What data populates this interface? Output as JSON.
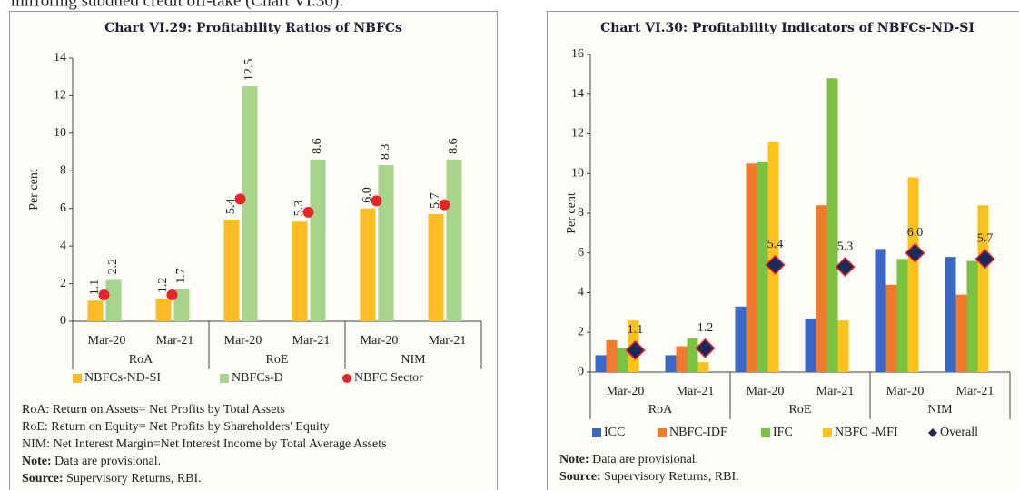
{
  "page_text": "mirroring subdued credit off-take (Chart VI.30).",
  "chart_data": [
    {
      "type": "bar",
      "title": "Chart VI.29: Profitability Ratios of NBFCs",
      "y_label": "Per cent",
      "categories": [
        "Mar-20",
        "Mar-21",
        "Mar-20",
        "Mar-21",
        "Mar-20",
        "Mar-21"
      ],
      "groups": [
        "RoA",
        "RoE",
        "NIM"
      ],
      "ylim": [
        0,
        14
      ],
      "yticks": [
        0,
        2,
        4,
        6,
        8,
        10,
        12,
        14
      ],
      "series": [
        {
          "name": "NBFCs-ND-SI",
          "color": "#fbbd22",
          "values": [
            1.1,
            1.2,
            5.4,
            5.3,
            6.0,
            5.7
          ],
          "value_labels": [
            "1.1",
            "1.2",
            "5.4",
            "5.3",
            "6.0",
            "5.7"
          ]
        },
        {
          "name": "NBFCs-D",
          "color": "#a6d48a",
          "values": [
            2.2,
            1.7,
            12.5,
            8.6,
            8.3,
            8.6
          ]
        },
        {
          "name": "NBFC Sector",
          "color": "#e8232a",
          "marker": "circle",
          "values": [
            1.4,
            1.4,
            6.5,
            5.8,
            6.4,
            6.2
          ]
        }
      ],
      "definitions": [
        "RoA: Return on Assets= Net Profits by Total Assets",
        "RoE: Return on Equity= Net Profits by Shareholders' Equity",
        "NIM: Net Interest Margin=Net Interest Income by Total Average Assets"
      ],
      "notes": [
        {
          "label": "Note:",
          "text": " Data are provisional."
        },
        {
          "label": "Source:",
          "text": " Supervisory Returns, RBI."
        }
      ]
    },
    {
      "type": "bar",
      "title": "Chart VI.30: Profitability Indicators of NBFCs-ND-SI",
      "y_label": "Per cent",
      "categories": [
        "Mar-20",
        "Mar-21",
        "Mar-20",
        "Mar-21",
        "Mar-20",
        "Mar-21"
      ],
      "groups": [
        "RoA",
        "RoE",
        "NIM"
      ],
      "ylim": [
        0,
        16
      ],
      "yticks": [
        0,
        2,
        4,
        6,
        8,
        10,
        12,
        14,
        16
      ],
      "series": [
        {
          "name": "ICC",
          "color": "#3b68c6",
          "values": [
            0.85,
            0.85,
            3.3,
            2.7,
            6.2,
            5.8
          ]
        },
        {
          "name": "NBFC-IDF",
          "color": "#f17b2b",
          "values": [
            1.6,
            1.3,
            10.5,
            8.4,
            4.4,
            3.9
          ]
        },
        {
          "name": "IFC",
          "color": "#7cc242",
          "values": [
            1.2,
            1.7,
            10.6,
            14.8,
            5.7,
            5.6
          ]
        },
        {
          "name": "NBFC -MFI",
          "color": "#fcc21b",
          "values": [
            2.6,
            0.5,
            11.6,
            2.6,
            9.8,
            8.4
          ]
        },
        {
          "name": "Overall",
          "color": "#1b2a5c",
          "marker": "diamond",
          "values": [
            1.1,
            1.2,
            5.4,
            5.3,
            6.0,
            5.7
          ],
          "value_labels": [
            "1.1",
            "1.2",
            "5.4",
            "5.3",
            "6.0",
            "5.7"
          ]
        }
      ],
      "notes": [
        {
          "label": "Note:",
          "text": " Data are provisional."
        },
        {
          "label": "Source:",
          "text": " Supervisory Returns, RBI."
        }
      ]
    }
  ]
}
